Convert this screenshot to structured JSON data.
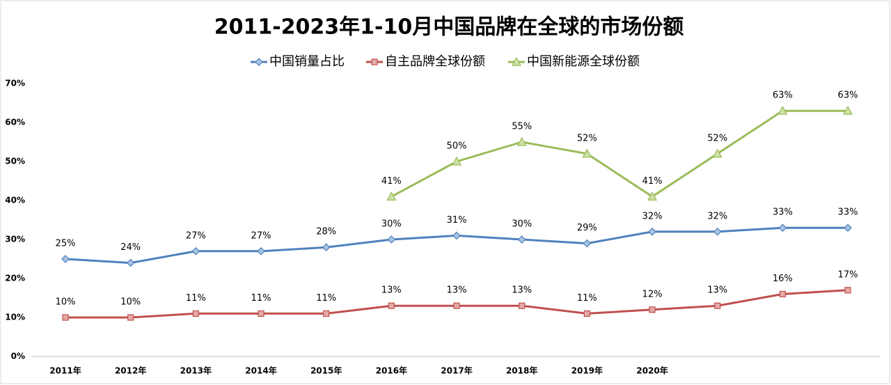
{
  "chart_data": {
    "type": "line",
    "title": "2011-2023年1-10月中国品牌在全球的市场份额",
    "categories": [
      "2011年",
      "2012年",
      "2013年",
      "2014年",
      "2015年",
      "2016年",
      "2017年",
      "2018年",
      "2019年",
      "2020年",
      null,
      null,
      null
    ],
    "series": [
      {
        "name": "中国销量占比",
        "color": "#4f81bd",
        "marker": "diamond",
        "values": [
          25,
          24,
          27,
          27,
          28,
          30,
          31,
          30,
          29,
          32,
          32,
          33,
          33
        ],
        "value_labels": [
          "25%",
          "24%",
          "27%",
          "27%",
          "28%",
          "30%",
          "31%",
          "30%",
          "29%",
          "32%",
          "32%",
          "33%",
          "33%"
        ]
      },
      {
        "name": "自主品牌全球份额",
        "color": "#c0504d",
        "marker": "square",
        "values": [
          10,
          10,
          11,
          11,
          11,
          13,
          13,
          13,
          11,
          12,
          13,
          16,
          17
        ],
        "value_labels": [
          "10%",
          "10%",
          "11%",
          "11%",
          "11%",
          "13%",
          "13%",
          "13%",
          "11%",
          "12%",
          "13%",
          "16%",
          "17%"
        ]
      },
      {
        "name": "中国新能源全球份额",
        "color": "#9bbb59",
        "marker": "triangle",
        "values": [
          null,
          null,
          null,
          null,
          null,
          41,
          50,
          55,
          52,
          41,
          52,
          63,
          63
        ],
        "value_labels": [
          null,
          null,
          null,
          null,
          null,
          "41%",
          "50%",
          "55%",
          "52%",
          "41%",
          "52%",
          "63%",
          "63%"
        ]
      }
    ],
    "ylim": [
      0,
      70
    ],
    "yticks": [
      {
        "value": 0,
        "label": "0%"
      },
      {
        "value": 10,
        "label": "10%"
      },
      {
        "value": 20,
        "label": "20%"
      },
      {
        "value": 30,
        "label": "30%"
      },
      {
        "value": 40,
        "label": "40%"
      },
      {
        "value": 50,
        "label": "50%"
      },
      {
        "value": 60,
        "label": "60%"
      },
      {
        "value": 70,
        "label": "70%"
      }
    ],
    "grid": false,
    "legend": "top"
  }
}
